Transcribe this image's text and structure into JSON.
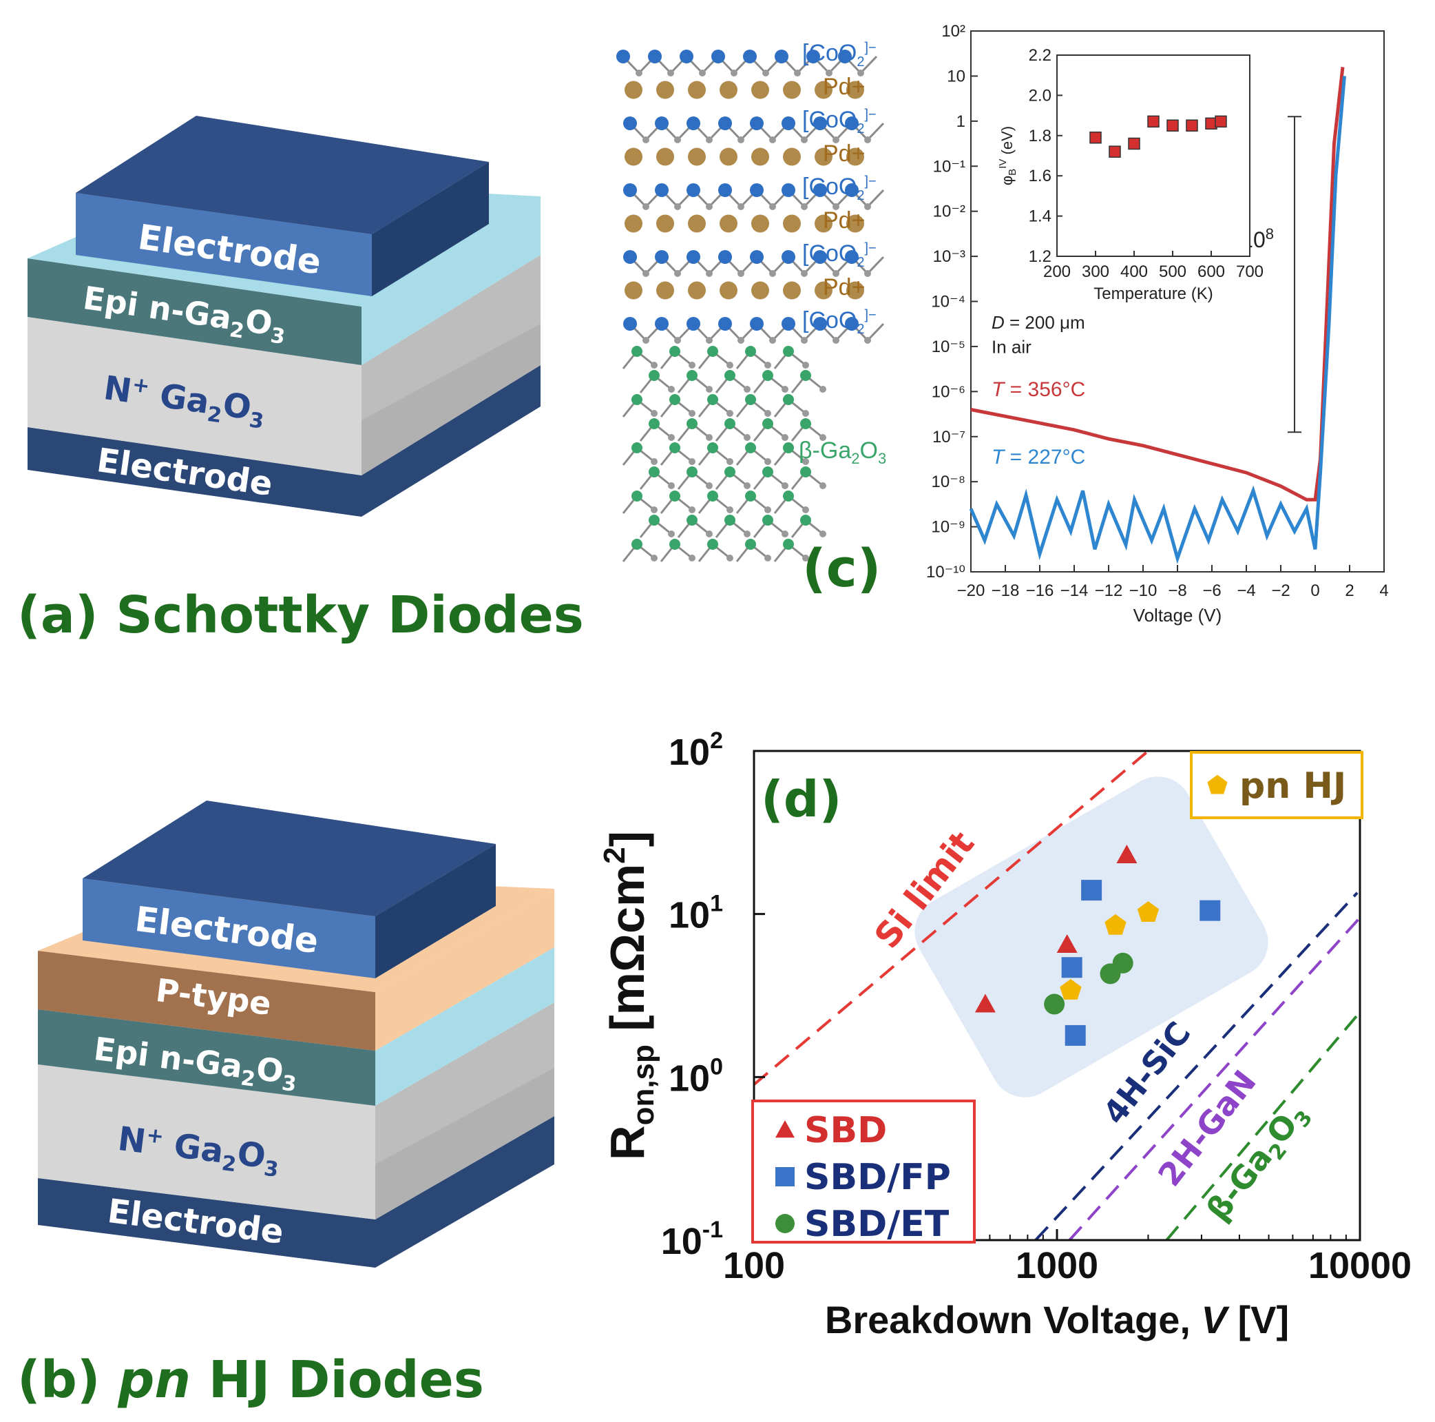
{
  "panel_a": {
    "caption_label": "(a)",
    "caption_title": "Schottky Diodes",
    "layers": {
      "electrode_top": "Electrode",
      "epi": "Epi n-Ga",
      "epi_sub": "2",
      "epi_o": "O",
      "epi_o_sub": "3",
      "nplus": "N",
      "nplus_sup": "+",
      "nplus_ga": " Ga",
      "nplus_sub": "2",
      "nplus_o": "O",
      "nplus_o_sub": "3",
      "electrode_bottom": "Electrode"
    },
    "colors": {
      "electrode": "#4a78b8",
      "electrode_dark": "#223f6e",
      "epi": "#4b777b",
      "cap": "#a8dce8",
      "nplus": "#d3d3d3",
      "electrode_bottom": "#2b4775"
    }
  },
  "panel_b": {
    "caption_label": "(b)",
    "caption_italic": "pn",
    "caption_title": " HJ Diodes",
    "layers": {
      "electrode_top": "Electrode",
      "ptype": "P-type",
      "epi": "Epi n-Ga",
      "epi_sub": "2",
      "epi_o": "O",
      "epi_o_sub": "3",
      "nplus": "N",
      "nplus_sup": "+",
      "nplus_ga": " Ga",
      "nplus_sub": "2",
      "nplus_o": "O",
      "nplus_o_sub": "3",
      "electrode_bottom": "Electrode"
    },
    "colors": {
      "ptype": "#a2714d",
      "ptype_cap": "#f8caa0"
    }
  },
  "panel_c": {
    "label": "(c)",
    "structure_labels": [
      {
        "text": "[CoO",
        "sub": "2",
        "sup": "]−",
        "color": "#2e6fc4"
      },
      {
        "text": "Pd+",
        "color": "#a06b1e"
      },
      {
        "text": "[CoO",
        "sub": "2",
        "sup": "]−",
        "color": "#2e6fc4"
      },
      {
        "text": "Pd+",
        "color": "#a06b1e"
      },
      {
        "text": "[CoO",
        "sub": "2",
        "sup": "]−",
        "color": "#2e6fc4"
      },
      {
        "text": "Pd+",
        "color": "#a06b1e"
      },
      {
        "text": "[CoO",
        "sub": "2",
        "sup": "]−",
        "color": "#2e6fc4"
      },
      {
        "text": "Pd+",
        "color": "#a06b1e"
      },
      {
        "text": "[CoO",
        "sub": "2",
        "sup": "]−",
        "color": "#2e6fc4"
      }
    ],
    "beta_label": {
      "text": "β-Ga",
      "sub": "2",
      "o": "O",
      "o_sub": "3",
      "color": "#3aa56b"
    },
    "iv_chart": {
      "type": "line",
      "yscale": "log",
      "xlim": [
        -20,
        4
      ],
      "ylim_exp": [
        -10,
        2
      ],
      "x_ticks": [
        "−20",
        "−18",
        "−16",
        "−14",
        "−12",
        "−10",
        "−8",
        "−6",
        "−4",
        "−2",
        "0",
        "2",
        "4"
      ],
      "y_ticks": [
        "10⁻¹⁰",
        "10⁻⁹",
        "10⁻⁸",
        "10⁻⁷",
        "10⁻⁶",
        "10⁻⁵",
        "10⁻⁴",
        "10⁻³",
        "10⁻²",
        "10⁻¹",
        "1",
        "10",
        "10²"
      ],
      "xlabel": "Voltage (V)",
      "ratio_label": "10",
      "ratio_sup": "8",
      "note_d": "D",
      "note_d_rest": " = 200 μm",
      "note_air": "In air",
      "series": [
        {
          "name_t": "T",
          "name_rest": " = 356°C",
          "color": "#c8373a",
          "points": [
            [
              -20,
              -6.4
            ],
            [
              -18,
              -6.55
            ],
            [
              -16,
              -6.7
            ],
            [
              -14,
              -6.85
            ],
            [
              -12,
              -7.05
            ],
            [
              -10,
              -7.2
            ],
            [
              -8,
              -7.4
            ],
            [
              -6,
              -7.6
            ],
            [
              -4,
              -7.8
            ],
            [
              -2,
              -8.1
            ],
            [
              -0.5,
              -8.4
            ],
            [
              0,
              -8.4
            ],
            [
              0.3,
              -7.5
            ],
            [
              0.7,
              -4
            ],
            [
              1.1,
              -0.5
            ],
            [
              1.6,
              1.2
            ]
          ]
        },
        {
          "name_t": "T",
          "name_rest": " = 227°C",
          "color": "#2e86d0",
          "points": [
            [
              -20,
              -8.6
            ],
            [
              -19.2,
              -9.3
            ],
            [
              -18.5,
              -8.5
            ],
            [
              -17.5,
              -9.2
            ],
            [
              -16.8,
              -8.3
            ],
            [
              -16,
              -9.6
            ],
            [
              -15,
              -8.4
            ],
            [
              -14.2,
              -9.1
            ],
            [
              -13.5,
              -8.2
            ],
            [
              -12.8,
              -9.5
            ],
            [
              -12,
              -8.5
            ],
            [
              -11,
              -9.4
            ],
            [
              -10.5,
              -8.4
            ],
            [
              -9.5,
              -9.3
            ],
            [
              -8.8,
              -8.6
            ],
            [
              -8,
              -9.7
            ],
            [
              -7,
              -8.6
            ],
            [
              -6.2,
              -9.3
            ],
            [
              -5.4,
              -8.4
            ],
            [
              -4.5,
              -9.1
            ],
            [
              -3.6,
              -8.2
            ],
            [
              -2.8,
              -9.2
            ],
            [
              -2,
              -8.5
            ],
            [
              -1.2,
              -9.1
            ],
            [
              -0.5,
              -8.6
            ],
            [
              0,
              -9.5
            ],
            [
              0.3,
              -7.8
            ],
            [
              0.8,
              -4.5
            ],
            [
              1.2,
              -1.2
            ],
            [
              1.7,
              1
            ]
          ]
        }
      ]
    },
    "inset": {
      "type": "scatter",
      "xlim": [
        200,
        700
      ],
      "ylim": [
        1.2,
        2.2
      ],
      "x_ticks": [
        "200",
        "300",
        "400",
        "500",
        "600",
        "700"
      ],
      "y_ticks": [
        "1.2",
        "1.4",
        "1.6",
        "1.8",
        "2.0",
        "2.2"
      ],
      "xlabel": "Temperature (K)",
      "ylabel": "φ",
      "ylabel_sub": "B",
      "ylabel_sup": "IV",
      "ylabel_rest": " (eV)",
      "marker_color": "#d32f2f",
      "points": [
        [
          300,
          1.79
        ],
        [
          350,
          1.72
        ],
        [
          400,
          1.76
        ],
        [
          450,
          1.87
        ],
        [
          500,
          1.85
        ],
        [
          550,
          1.85
        ],
        [
          600,
          1.86
        ],
        [
          625,
          1.87
        ]
      ]
    }
  },
  "panel_d": {
    "label": "(d)",
    "chart_data": {
      "type": "scatter",
      "xscale": "log",
      "yscale": "log",
      "xlim": [
        100,
        10000
      ],
      "ylim": [
        0.1,
        100
      ],
      "x_ticks": [
        "100",
        "1000",
        "10000"
      ],
      "y_ticks_base": "10",
      "y_ticks_exp": [
        "-1",
        "0",
        "1",
        "2"
      ],
      "xlabel": "Breakdown Voltage, ",
      "xlabel_v": "V",
      "xlabel_unit": " [V]",
      "ylabel": "R",
      "ylabel_sub": "on,sp",
      "ylabel_unit": " [mΩcm",
      "ylabel_sup": "2",
      "ylabel_close": "]",
      "limit_lines": [
        {
          "name": "Si limit",
          "color": "#e53935",
          "x": [
            100,
            2000
          ],
          "y": [
            0.9,
            100
          ]
        },
        {
          "name": "4H-SiC",
          "color": "#1a2f7a",
          "x": [
            850,
            9800
          ],
          "y": [
            0.1,
            13.5
          ]
        },
        {
          "name": "2H-GaN",
          "color": "#8e44c8",
          "x": [
            1100,
            10000
          ],
          "y": [
            0.1,
            9.5
          ]
        },
        {
          "name": "β-Ga",
          "name_sub": "2",
          "name_o": "O",
          "name_o_sub": "3",
          "color": "#2e8b2e",
          "x": [
            2300,
            10000
          ],
          "y": [
            0.1,
            2.5
          ]
        }
      ],
      "legend": [
        {
          "name": "SBD",
          "marker": "triangle",
          "color": "#d32f2f"
        },
        {
          "name": "SBD/FP",
          "marker": "square",
          "color": "#3a73c7"
        },
        {
          "name": "SBD/ET",
          "marker": "circle",
          "color": "#3f8f3a"
        }
      ],
      "legend_pn": {
        "name": "pn HJ",
        "marker": "pentagon",
        "color": "#f2b500"
      },
      "series": [
        {
          "name": "SBD",
          "marker": "triangle",
          "color": "#d32f2f",
          "points": [
            [
              580,
              2.8
            ],
            [
              1080,
              6.5
            ],
            [
              1700,
              23
            ]
          ]
        },
        {
          "name": "SBD/FP",
          "marker": "square",
          "color": "#3a73c7",
          "points": [
            [
              1120,
              4.7
            ],
            [
              1150,
              1.8
            ],
            [
              1300,
              14
            ],
            [
              3200,
              10.5
            ]
          ]
        },
        {
          "name": "SBD/ET",
          "marker": "circle",
          "color": "#3f8f3a",
          "points": [
            [
              980,
              2.8
            ],
            [
              1500,
              4.3
            ],
            [
              1650,
              5
            ]
          ]
        },
        {
          "name": "pn HJ",
          "marker": "pentagon",
          "color": "#f2b500",
          "points": [
            [
              1110,
              3.4
            ],
            [
              1560,
              8.5
            ],
            [
              2000,
              10.2
            ]
          ]
        }
      ]
    }
  }
}
